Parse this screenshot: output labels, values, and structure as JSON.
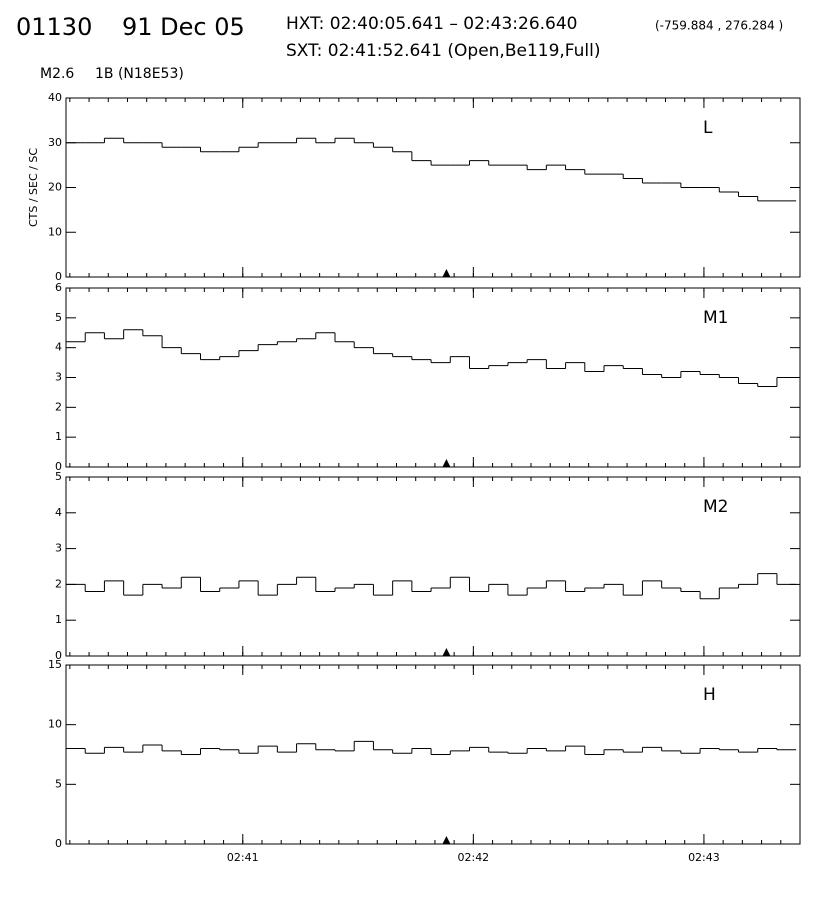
{
  "header": {
    "event": "01130",
    "date": "91 Dec 05",
    "hxt": "HXT: 02:40:05.641 – 02:43:26.640",
    "coords": "(-759.884 , 276.284 )",
    "sxt": "SXT: 02:41:52.641 (Open,Be119,Full)",
    "goes": "M2.6",
    "halpha": "1B (N18E53)"
  },
  "chart_data": [
    {
      "type": "step",
      "label": "L",
      "ylabel": "CTS / SEC / SC",
      "marker_x": 113,
      "x": [
        14,
        19,
        24,
        29,
        34,
        39,
        44,
        49,
        54,
        59,
        64,
        69,
        74,
        79,
        84,
        89,
        94,
        99,
        104,
        109,
        114,
        119,
        124,
        129,
        134,
        139,
        144,
        149,
        154,
        159,
        164,
        169,
        174,
        179,
        184,
        189,
        194,
        199
      ],
      "values": [
        30,
        30,
        31,
        30,
        30,
        29,
        29,
        28,
        28,
        29,
        30,
        30,
        31,
        30,
        31,
        30,
        29,
        28,
        26,
        25,
        25,
        26,
        25,
        25,
        24,
        25,
        24,
        23,
        23,
        22,
        21,
        21,
        20,
        20,
        19,
        18,
        17,
        17
      ],
      "xlim": [
        14,
        205
      ],
      "ylim": [
        0,
        40
      ],
      "yticks": [
        0,
        10,
        20,
        30,
        40
      ]
    },
    {
      "type": "step",
      "label": "M1",
      "marker_x": 113,
      "x": [
        14,
        19,
        24,
        29,
        34,
        39,
        44,
        49,
        54,
        59,
        64,
        69,
        74,
        79,
        84,
        89,
        94,
        99,
        104,
        109,
        114,
        119,
        124,
        129,
        134,
        139,
        144,
        149,
        154,
        159,
        164,
        169,
        174,
        179,
        184,
        189,
        194,
        199
      ],
      "values": [
        4.2,
        4.5,
        4.3,
        4.6,
        4.4,
        4.0,
        3.8,
        3.6,
        3.7,
        3.9,
        4.1,
        4.2,
        4.3,
        4.5,
        4.2,
        4.0,
        3.8,
        3.7,
        3.6,
        3.5,
        3.7,
        3.3,
        3.4,
        3.5,
        3.6,
        3.3,
        3.5,
        3.2,
        3.4,
        3.3,
        3.1,
        3.0,
        3.2,
        3.1,
        3.0,
        2.8,
        2.7,
        3.0
      ],
      "xlim": [
        14,
        205
      ],
      "ylim": [
        0,
        6
      ],
      "yticks": [
        0,
        1,
        2,
        3,
        4,
        5,
        6
      ]
    },
    {
      "type": "step",
      "label": "M2",
      "marker_x": 113,
      "x": [
        14,
        19,
        24,
        29,
        34,
        39,
        44,
        49,
        54,
        59,
        64,
        69,
        74,
        79,
        84,
        89,
        94,
        99,
        104,
        109,
        114,
        119,
        124,
        129,
        134,
        139,
        144,
        149,
        154,
        159,
        164,
        169,
        174,
        179,
        184,
        189,
        194,
        199
      ],
      "values": [
        2.0,
        1.8,
        2.1,
        1.7,
        2.0,
        1.9,
        2.2,
        1.8,
        1.9,
        2.1,
        1.7,
        2.0,
        2.2,
        1.8,
        1.9,
        2.0,
        1.7,
        2.1,
        1.8,
        1.9,
        2.2,
        1.8,
        2.0,
        1.7,
        1.9,
        2.1,
        1.8,
        1.9,
        2.0,
        1.7,
        2.1,
        1.9,
        1.8,
        1.6,
        1.9,
        2.0,
        2.3,
        2.0
      ],
      "xlim": [
        14,
        205
      ],
      "ylim": [
        0,
        5
      ],
      "yticks": [
        0,
        1,
        2,
        3,
        4,
        5
      ]
    },
    {
      "type": "step",
      "label": "H",
      "marker_x": 113,
      "x": [
        14,
        19,
        24,
        29,
        34,
        39,
        44,
        49,
        54,
        59,
        64,
        69,
        74,
        79,
        84,
        89,
        94,
        99,
        104,
        109,
        114,
        119,
        124,
        129,
        134,
        139,
        144,
        149,
        154,
        159,
        164,
        169,
        174,
        179,
        184,
        189,
        194,
        199
      ],
      "values": [
        8.0,
        7.6,
        8.1,
        7.7,
        8.3,
        7.8,
        7.5,
        8.0,
        7.9,
        7.6,
        8.2,
        7.7,
        8.4,
        7.9,
        7.8,
        8.6,
        7.9,
        7.6,
        8.0,
        7.5,
        7.8,
        8.1,
        7.7,
        7.6,
        8.0,
        7.8,
        8.2,
        7.5,
        7.9,
        7.7,
        8.1,
        7.8,
        7.6,
        8.0,
        7.9,
        7.7,
        8.0,
        7.9
      ],
      "xlim": [
        14,
        205
      ],
      "ylim": [
        0,
        15
      ],
      "yticks": [
        0,
        5,
        10,
        15
      ],
      "xticks": [
        {
          "value": 60,
          "label": "02:41"
        },
        {
          "value": 120,
          "label": "02:42"
        },
        {
          "value": 180,
          "label": "02:43"
        }
      ]
    }
  ]
}
